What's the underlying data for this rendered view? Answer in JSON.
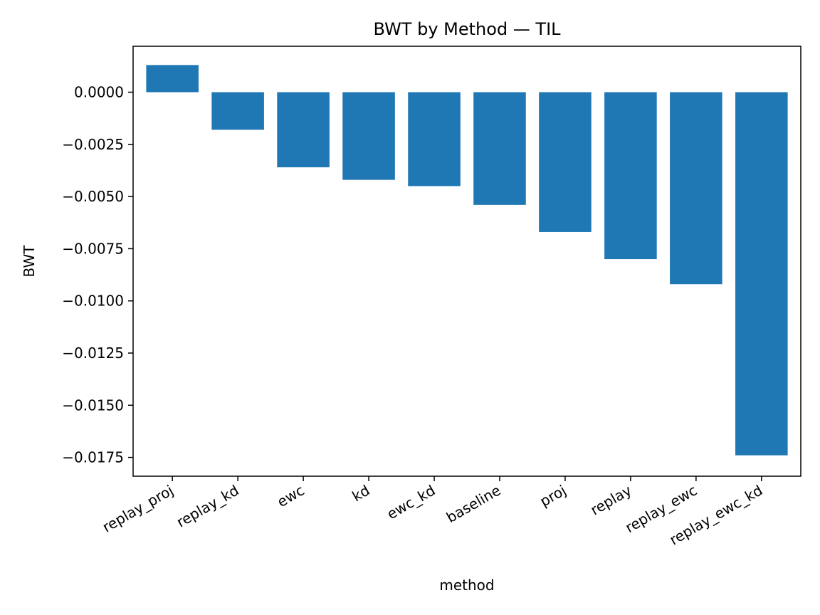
{
  "chart_data": {
    "type": "bar",
    "title": "BWT by Method — TIL",
    "xlabel": "method",
    "ylabel": "BWT",
    "categories": [
      "replay_proj",
      "replay_kd",
      "ewc",
      "kd",
      "ewc_kd",
      "baseline",
      "proj",
      "replay",
      "replay_ewc",
      "replay_ewc_kd"
    ],
    "values": [
      0.0013,
      -0.0018,
      -0.0036,
      -0.0042,
      -0.0045,
      -0.0054,
      -0.0067,
      -0.008,
      -0.0092,
      -0.0174
    ],
    "yticks": [
      0.0,
      -0.0025,
      -0.005,
      -0.0075,
      -0.01,
      -0.0125,
      -0.015,
      -0.0175
    ],
    "ytick_labels": [
      "0.0000",
      "−0.0025",
      "−0.0050",
      "−0.0075",
      "−0.0100",
      "−0.0125",
      "−0.0150",
      "−0.0175"
    ],
    "ylim": [
      -0.0184,
      0.0022
    ],
    "grid": false,
    "bar_color": "#1f77b4"
  }
}
